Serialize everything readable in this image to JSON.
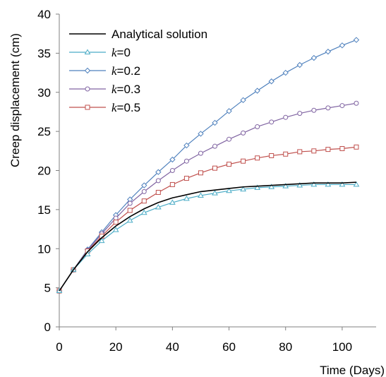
{
  "chart_data": {
    "type": "line",
    "title": "",
    "xlabel": "Time (Days)",
    "ylabel": "Creep displacement (cm)",
    "xlim": [
      0,
      110
    ],
    "ylim": [
      0,
      40
    ],
    "xticks": [
      0,
      20,
      40,
      60,
      80,
      100
    ],
    "yticks": [
      0,
      5,
      10,
      15,
      20,
      25,
      30,
      35,
      40
    ],
    "grid": false,
    "legend_position": "top-left",
    "x": [
      0,
      5,
      10,
      15,
      20,
      25,
      30,
      35,
      40,
      45,
      50,
      55,
      60,
      65,
      70,
      75,
      80,
      85,
      90,
      95,
      100,
      105
    ],
    "series": [
      {
        "name": "Analytical  solution",
        "legend_symbol": "",
        "legend_value": "",
        "color": "#000000",
        "marker": "none",
        "values": [
          4.6,
          7.3,
          9.6,
          11.4,
          12.9,
          14.1,
          15.1,
          15.9,
          16.5,
          16.9,
          17.3,
          17.5,
          17.7,
          17.9,
          18.0,
          18.1,
          18.2,
          18.3,
          18.4,
          18.4,
          18.4,
          18.5
        ]
      },
      {
        "name": "",
        "legend_symbol": "k",
        "legend_value": "=0",
        "color": "#4bacc6",
        "marker": "triangle",
        "values": [
          4.6,
          7.3,
          9.3,
          11.0,
          12.4,
          13.6,
          14.6,
          15.3,
          15.9,
          16.4,
          16.8,
          17.1,
          17.4,
          17.6,
          17.8,
          17.9,
          18.0,
          18.1,
          18.2,
          18.2,
          18.2,
          18.2
        ]
      },
      {
        "name": "",
        "legend_symbol": "k",
        "legend_value": "=0.2",
        "color": "#4f81bd",
        "marker": "diamond",
        "values": [
          4.6,
          7.3,
          9.9,
          12.1,
          14.3,
          16.3,
          18.1,
          19.8,
          21.4,
          23.2,
          24.7,
          26.1,
          27.6,
          29.0,
          30.2,
          31.4,
          32.5,
          33.5,
          34.4,
          35.2,
          36.0,
          36.7
        ]
      },
      {
        "name": "",
        "legend_symbol": "k",
        "legend_value": "=0.3",
        "color": "#8064a2",
        "marker": "circle",
        "values": [
          4.6,
          7.3,
          9.8,
          11.9,
          13.9,
          15.8,
          17.3,
          18.7,
          20.0,
          21.2,
          22.2,
          23.1,
          24.0,
          24.8,
          25.6,
          26.2,
          26.8,
          27.3,
          27.7,
          28.0,
          28.3,
          28.6
        ]
      },
      {
        "name": "",
        "legend_symbol": "k",
        "legend_value": "=0.5",
        "color": "#c0504d",
        "marker": "square",
        "values": [
          4.6,
          7.3,
          9.7,
          11.6,
          13.4,
          14.9,
          16.1,
          17.2,
          18.2,
          19.0,
          19.7,
          20.3,
          20.8,
          21.2,
          21.6,
          21.9,
          22.1,
          22.4,
          22.5,
          22.7,
          22.8,
          23.0
        ]
      }
    ]
  }
}
